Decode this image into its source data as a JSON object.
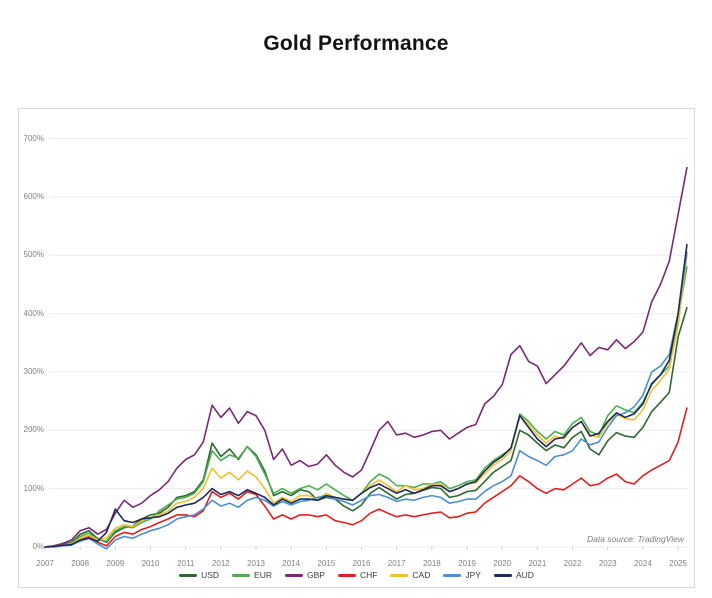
{
  "page": {
    "title": "Gold Performance",
    "background": "#ffffff",
    "panel_border": "#d9d9d9"
  },
  "chart": {
    "data_source_note": "Data source: TradingView"
  },
  "chart_data": {
    "type": "line",
    "title": "Gold Performance",
    "xlabel": "",
    "ylabel": "",
    "ylim": [
      0,
      730
    ],
    "grid": "horizontal-only",
    "gridline_color": "#ebebeb",
    "legend_position": "bottom-center",
    "y_tick_labels": [
      "0%",
      "100%",
      "200%",
      "300%",
      "400%",
      "500%",
      "600%",
      "700%"
    ],
    "y_tick_values": [
      0,
      100,
      200,
      300,
      400,
      500,
      600,
      700
    ],
    "x_tick_labels": [
      "2007",
      "2008",
      "2009",
      "2010",
      "2011",
      "2012",
      "2013",
      "2014",
      "2015",
      "2016",
      "2017",
      "2018",
      "2019",
      "2020",
      "2021",
      "2022",
      "2023",
      "2024",
      "2025"
    ],
    "x": [
      2007,
      2007.25,
      2007.5,
      2007.75,
      2008,
      2008.25,
      2008.5,
      2008.75,
      2009,
      2009.25,
      2009.5,
      2009.75,
      2010,
      2010.25,
      2010.5,
      2010.75,
      2011,
      2011.25,
      2011.5,
      2011.75,
      2012,
      2012.25,
      2012.5,
      2012.75,
      2013,
      2013.25,
      2013.5,
      2013.75,
      2014,
      2014.25,
      2014.5,
      2014.75,
      2015,
      2015.25,
      2015.5,
      2015.75,
      2016,
      2016.25,
      2016.5,
      2016.75,
      2017,
      2017.25,
      2017.5,
      2017.75,
      2018,
      2018.25,
      2018.5,
      2018.75,
      2019,
      2019.25,
      2019.5,
      2019.75,
      2020,
      2020.25,
      2020.5,
      2020.75,
      2021,
      2021.25,
      2021.5,
      2021.75,
      2022,
      2022.25,
      2022.5,
      2022.75,
      2023,
      2023.25,
      2023.5,
      2023.75,
      2024,
      2024.25,
      2024.5,
      2024.75,
      2025,
      2025.25
    ],
    "series": [
      {
        "name": "USD",
        "color": "#2d6a31",
        "values": [
          0,
          2,
          4,
          8,
          22,
          28,
          14,
          8,
          25,
          33,
          36,
          48,
          55,
          58,
          68,
          85,
          88,
          95,
          115,
          178,
          155,
          168,
          150,
          172,
          158,
          130,
          88,
          95,
          88,
          98,
          95,
          80,
          85,
          82,
          70,
          62,
          72,
          92,
          102,
          92,
          82,
          90,
          92,
          97,
          102,
          100,
          85,
          88,
          95,
          97,
          112,
          128,
          138,
          148,
          200,
          192,
          178,
          165,
          175,
          170,
          188,
          198,
          168,
          158,
          182,
          196,
          190,
          188,
          205,
          232,
          248,
          265,
          360,
          410
        ]
      },
      {
        "name": "EUR",
        "color": "#4caf50",
        "values": [
          0,
          1,
          3,
          6,
          18,
          24,
          12,
          10,
          28,
          35,
          33,
          42,
          48,
          62,
          72,
          82,
          85,
          92,
          112,
          165,
          148,
          158,
          152,
          172,
          155,
          125,
          92,
          100,
          92,
          100,
          105,
          98,
          108,
          98,
          88,
          80,
          92,
          112,
          125,
          118,
          105,
          105,
          102,
          108,
          108,
          112,
          100,
          105,
          112,
          115,
          135,
          148,
          158,
          168,
          228,
          215,
          198,
          185,
          198,
          192,
          212,
          222,
          198,
          192,
          225,
          242,
          235,
          230,
          248,
          278,
          295,
          310,
          390,
          480
        ]
      },
      {
        "name": "GBP",
        "color": "#7c2878",
        "values": [
          0,
          2,
          6,
          12,
          28,
          33,
          22,
          30,
          58,
          80,
          68,
          75,
          88,
          98,
          112,
          135,
          150,
          158,
          180,
          243,
          222,
          238,
          212,
          232,
          225,
          200,
          150,
          168,
          140,
          148,
          138,
          142,
          158,
          140,
          128,
          120,
          132,
          165,
          200,
          215,
          192,
          195,
          188,
          192,
          198,
          200,
          185,
          195,
          205,
          210,
          245,
          258,
          278,
          330,
          345,
          318,
          310,
          280,
          295,
          310,
          330,
          350,
          328,
          342,
          338,
          355,
          340,
          352,
          368,
          420,
          450,
          490,
          570,
          650
        ]
      },
      {
        "name": "CHF",
        "color": "#e02020",
        "values": [
          0,
          1,
          3,
          5,
          12,
          18,
          8,
          2,
          18,
          25,
          22,
          30,
          35,
          42,
          48,
          55,
          55,
          52,
          62,
          95,
          85,
          92,
          82,
          95,
          90,
          70,
          48,
          55,
          48,
          55,
          55,
          52,
          55,
          45,
          42,
          38,
          45,
          58,
          65,
          58,
          52,
          55,
          52,
          55,
          58,
          60,
          50,
          52,
          58,
          60,
          75,
          85,
          95,
          105,
          122,
          112,
          100,
          92,
          100,
          98,
          108,
          118,
          105,
          108,
          118,
          125,
          112,
          108,
          122,
          132,
          140,
          148,
          180,
          238
        ]
      },
      {
        "name": "CAD",
        "color": "#f0c030",
        "values": [
          0,
          1,
          3,
          5,
          15,
          20,
          12,
          15,
          32,
          38,
          35,
          45,
          50,
          55,
          62,
          75,
          78,
          85,
          100,
          135,
          118,
          128,
          115,
          130,
          120,
          100,
          75,
          85,
          78,
          88,
          88,
          82,
          92,
          85,
          82,
          80,
          92,
          105,
          115,
          105,
          95,
          105,
          98,
          100,
          108,
          108,
          95,
          100,
          108,
          110,
          125,
          140,
          150,
          165,
          225,
          210,
          192,
          178,
          190,
          185,
          205,
          215,
          192,
          188,
          212,
          228,
          220,
          218,
          235,
          268,
          285,
          305,
          380,
          500
        ]
      },
      {
        "name": "JPY",
        "color": "#4a90d2",
        "values": [
          0,
          0,
          2,
          3,
          10,
          15,
          5,
          -3,
          12,
          18,
          15,
          22,
          28,
          32,
          38,
          48,
          52,
          55,
          65,
          80,
          70,
          75,
          68,
          80,
          85,
          80,
          70,
          78,
          72,
          78,
          80,
          85,
          88,
          82,
          78,
          72,
          80,
          88,
          90,
          85,
          78,
          82,
          80,
          85,
          88,
          85,
          75,
          78,
          82,
          82,
          95,
          105,
          112,
          122,
          165,
          155,
          148,
          140,
          155,
          158,
          165,
          185,
          175,
          180,
          205,
          225,
          230,
          240,
          260,
          300,
          310,
          330,
          400,
          505
        ]
      },
      {
        "name": "AUD",
        "color": "#1c2b5e",
        "values": [
          0,
          1,
          3,
          4,
          12,
          15,
          10,
          25,
          65,
          45,
          42,
          48,
          50,
          52,
          58,
          68,
          72,
          75,
          85,
          100,
          90,
          95,
          88,
          98,
          92,
          85,
          72,
          82,
          75,
          82,
          82,
          80,
          88,
          85,
          82,
          80,
          92,
          102,
          108,
          100,
          92,
          98,
          92,
          98,
          105,
          105,
          95,
          100,
          108,
          112,
          130,
          145,
          155,
          170,
          225,
          205,
          185,
          172,
          185,
          188,
          205,
          215,
          190,
          195,
          215,
          230,
          222,
          228,
          245,
          280,
          295,
          320,
          400,
          518
        ]
      }
    ]
  }
}
